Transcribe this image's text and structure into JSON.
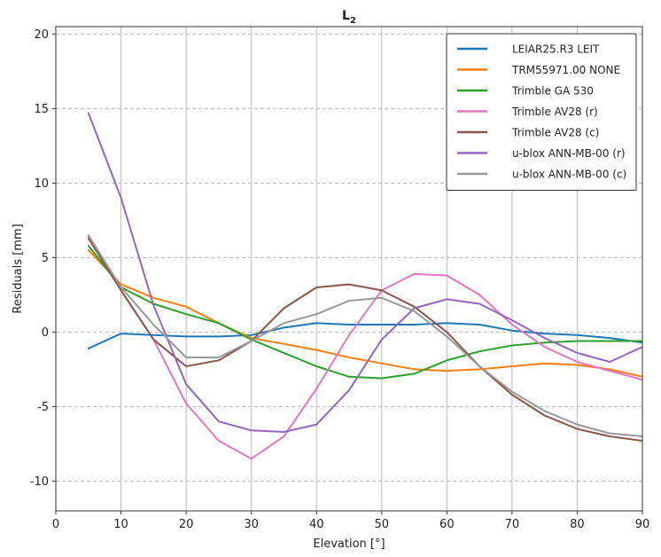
{
  "chart_data": {
    "type": "line",
    "title": "L",
    "title_subscript": "2",
    "xlabel": "Elevation [°]",
    "ylabel": "Residuals [mm]",
    "xlim": [
      0,
      90
    ],
    "ylim": [
      -12,
      20.5
    ],
    "xticks": [
      0,
      10,
      20,
      30,
      40,
      50,
      60,
      70,
      80,
      90
    ],
    "yticks": [
      -10,
      -5,
      0,
      5,
      10,
      15,
      20
    ],
    "grid": true,
    "legend_position": "top-right",
    "series": [
      {
        "name": "LEIAR25.R3 LEIT",
        "color": "#1f77b4",
        "x": [
          5,
          10,
          15,
          20,
          25,
          30,
          35,
          40,
          45,
          50,
          55,
          60,
          65,
          70,
          75,
          80,
          85,
          90
        ],
        "values": [
          -1.1,
          -0.1,
          -0.2,
          -0.3,
          -0.3,
          -0.2,
          0.3,
          0.6,
          0.5,
          0.5,
          0.5,
          0.6,
          0.5,
          0.1,
          -0.1,
          -0.2,
          -0.4,
          -0.7
        ]
      },
      {
        "name": "TRM55971.00 NONE",
        "color": "#ff7f0e",
        "x": [
          5,
          10,
          15,
          20,
          25,
          30,
          35,
          40,
          45,
          50,
          55,
          60,
          65,
          70,
          75,
          80,
          85,
          90
        ],
        "values": [
          5.5,
          3.2,
          2.3,
          1.7,
          0.6,
          -0.4,
          -0.8,
          -1.2,
          -1.7,
          -2.1,
          -2.5,
          -2.6,
          -2.5,
          -2.3,
          -2.1,
          -2.2,
          -2.5,
          -3.0
        ]
      },
      {
        "name": "Trimble GA 530",
        "color": "#2ca02c",
        "x": [
          5,
          10,
          15,
          20,
          25,
          30,
          35,
          40,
          45,
          50,
          55,
          60,
          65,
          70,
          75,
          80,
          85,
          90
        ],
        "values": [
          5.8,
          3.0,
          1.9,
          1.2,
          0.6,
          -0.5,
          -1.4,
          -2.3,
          -3.0,
          -3.1,
          -2.8,
          -1.9,
          -1.3,
          -0.9,
          -0.7,
          -0.6,
          -0.6,
          -0.6
        ]
      },
      {
        "name": "Trimble AV28 (r)",
        "color": "#e377c2",
        "x": [
          5,
          10,
          15,
          20,
          25,
          30,
          35,
          40,
          45,
          50,
          55,
          60,
          65,
          70,
          75,
          80,
          85,
          90
        ],
        "values": [
          6.3,
          2.8,
          -0.5,
          -4.8,
          -7.3,
          -8.5,
          -7.0,
          -3.8,
          -0.2,
          2.8,
          3.9,
          3.8,
          2.5,
          0.5,
          -1.0,
          -2.0,
          -2.6,
          -3.2
        ]
      },
      {
        "name": "Trimble AV28 (c)",
        "color": "#8c564b",
        "x": [
          5,
          10,
          15,
          20,
          25,
          30,
          35,
          40,
          45,
          50,
          55,
          60,
          65,
          70,
          75,
          80,
          85,
          90
        ],
        "values": [
          6.3,
          2.8,
          -0.5,
          -2.3,
          -1.9,
          -0.6,
          1.6,
          3.0,
          3.2,
          2.8,
          1.7,
          0.0,
          -2.3,
          -4.2,
          -5.6,
          -6.5,
          -7.0,
          -7.3
        ]
      },
      {
        "name": "u-blox ANN-MB-00 (r)",
        "color": "#9467bd",
        "x": [
          5,
          10,
          15,
          20,
          25,
          30,
          35,
          40,
          45,
          50,
          55,
          60,
          65,
          70,
          75,
          80,
          85,
          90
        ],
        "values": [
          14.7,
          9.0,
          1.8,
          -3.5,
          -6.0,
          -6.6,
          -6.7,
          -6.2,
          -3.9,
          -0.5,
          1.6,
          2.2,
          1.9,
          0.8,
          -0.4,
          -1.4,
          -2.0,
          -1.0
        ]
      },
      {
        "name": "u-blox ANN-MB-00 (c)",
        "color": "#999999",
        "x": [
          5,
          10,
          15,
          20,
          25,
          30,
          35,
          40,
          45,
          50,
          55,
          60,
          65,
          70,
          75,
          80,
          85,
          90
        ],
        "values": [
          6.5,
          3.0,
          0.5,
          -1.7,
          -1.7,
          -0.6,
          0.6,
          1.2,
          2.1,
          2.3,
          1.4,
          -0.3,
          -2.3,
          -4.0,
          -5.3,
          -6.2,
          -6.8,
          -7.0
        ]
      }
    ]
  }
}
